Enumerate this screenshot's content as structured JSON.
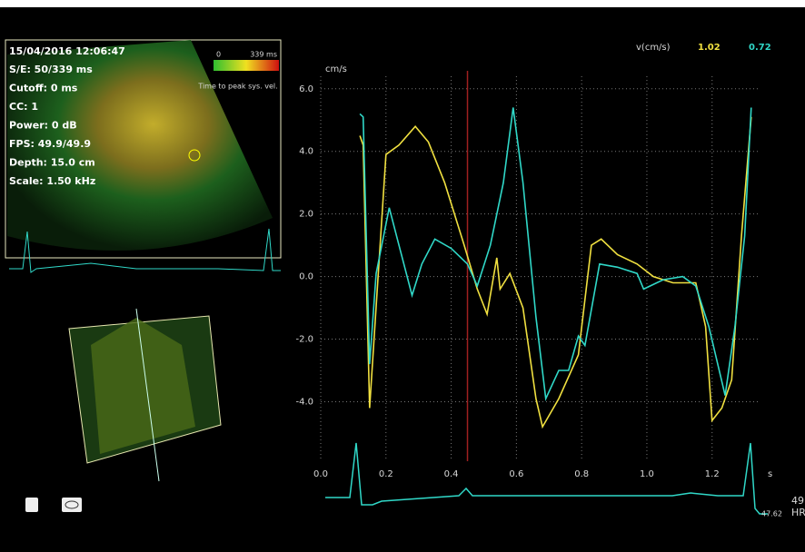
{
  "overlay": {
    "date": "15/04/2016 12:06:47",
    "lines": [
      "S/E: 50/339 ms",
      "Cutoff: 0 ms",
      "CC: 1",
      "Power: 0 dB",
      "FPS: 49.9/49.9",
      "Depth: 15.0 cm",
      "Scale: 1.50 kHz"
    ],
    "colorbar_min": "0",
    "colorbar_max": "339 ms",
    "colorbar_caption": "Time to peak sys. vel.",
    "hr_value": "49",
    "hr_label": "HR",
    "ecg_time": "47.62"
  },
  "chart_data": {
    "type": "line",
    "header_label": "v(cm/s)",
    "ylabel": "cm/s",
    "xlabel": "s",
    "xlim": [
      0,
      1.34
    ],
    "ylim": [
      -5.9,
      6.4
    ],
    "xticks": [
      {
        "value": 0,
        "label": "0.0"
      },
      {
        "value": 0.2,
        "label": "0.2"
      },
      {
        "value": 0.4,
        "label": "0.4"
      },
      {
        "value": 0.6,
        "label": "0.6"
      },
      {
        "value": 0.8,
        "label": "0.8"
      },
      {
        "value": 1,
        "label": "1.0"
      },
      {
        "value": 1.2,
        "label": "1.2"
      }
    ],
    "yticks": [
      {
        "value": 6,
        "label": "6.0"
      },
      {
        "value": 4,
        "label": "4.0"
      },
      {
        "value": 2,
        "label": "2.0"
      },
      {
        "value": 0,
        "label": "0.0"
      },
      {
        "value": -2,
        "label": "-2.0"
      },
      {
        "value": -4,
        "label": "-4.0"
      }
    ],
    "grid": true,
    "cursor_x": 0.45,
    "series": [
      {
        "name": "1.02",
        "color": "#f0e040",
        "x": [
          0.12,
          0.13,
          0.15,
          0.2,
          0.24,
          0.29,
          0.33,
          0.38,
          0.44,
          0.48,
          0.51,
          0.54,
          0.55,
          0.58,
          0.62,
          0.66,
          0.68,
          0.73,
          0.79,
          0.83,
          0.86,
          0.91,
          0.97,
          1.02,
          1.08,
          1.15,
          1.18,
          1.2,
          1.23,
          1.26,
          1.29,
          1.32
        ],
        "values": [
          4.5,
          4.2,
          -4.2,
          3.9,
          4.2,
          4.8,
          4.3,
          3.0,
          1.0,
          -0.4,
          -1.2,
          0.6,
          -0.4,
          0.1,
          -1.0,
          -3.9,
          -4.8,
          -3.9,
          -2.5,
          1.0,
          1.2,
          0.7,
          0.4,
          0.0,
          -0.2,
          -0.2,
          -1.6,
          -4.6,
          -4.2,
          -3.3,
          1.3,
          5.1
        ]
      },
      {
        "name": "0.72",
        "color": "#30d8c8",
        "x": [
          0.12,
          0.13,
          0.15,
          0.17,
          0.21,
          0.24,
          0.28,
          0.31,
          0.35,
          0.4,
          0.45,
          0.48,
          0.52,
          0.56,
          0.59,
          0.62,
          0.66,
          0.69,
          0.73,
          0.76,
          0.79,
          0.81,
          0.855,
          0.91,
          0.97,
          0.99,
          1.05,
          1.11,
          1.15,
          1.19,
          1.24,
          1.27,
          1.3,
          1.32
        ],
        "values": [
          5.2,
          5.1,
          -2.8,
          0.1,
          2.2,
          1.0,
          -0.6,
          0.4,
          1.2,
          0.9,
          0.4,
          -0.3,
          1.0,
          3.0,
          5.4,
          3.0,
          -1.3,
          -3.9,
          -3.0,
          -3.0,
          -1.9,
          -2.2,
          0.4,
          0.3,
          0.1,
          -0.4,
          -0.1,
          0.0,
          -0.3,
          -1.6,
          -3.8,
          -1.6,
          1.3,
          5.4
        ]
      }
    ]
  }
}
